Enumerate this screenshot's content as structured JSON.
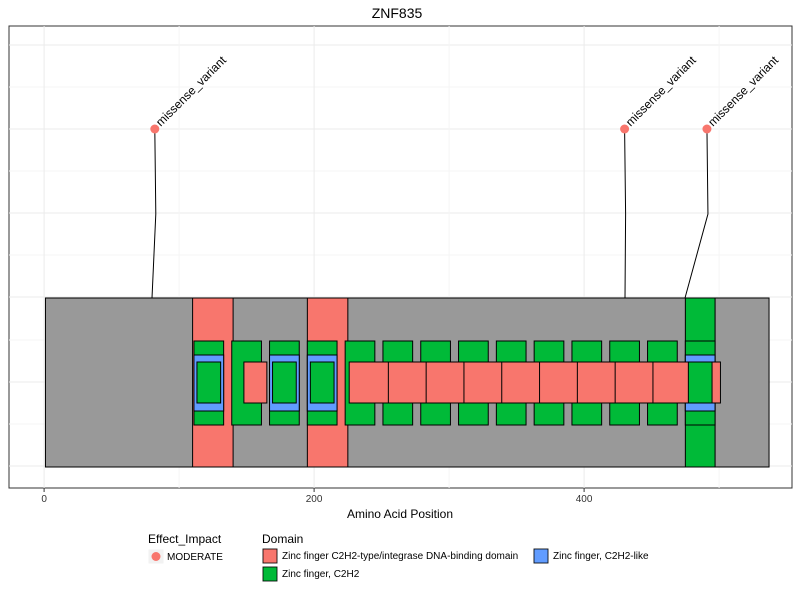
{
  "chart_data": {
    "type": "lollipop",
    "title": "ZNF835",
    "xlabel": "Amino Acid Position",
    "ylabel": "",
    "xlim": [
      -26,
      554
    ],
    "x_ticks": [
      0,
      200,
      400
    ],
    "grid": true,
    "protein": {
      "start": 1,
      "end": 537,
      "color": "#999999"
    },
    "domains": [
      {
        "group": "c2h2_integrase",
        "start": 110,
        "end": 140
      },
      {
        "group": "c2h2_integrase",
        "start": 195,
        "end": 225
      },
      {
        "group": "c2h2_integrase",
        "start": 487,
        "end": 497
      },
      {
        "group": "c2h2_integrase",
        "start": 148,
        "end": 165
      },
      {
        "group": "c2h2_integrase",
        "start": 226,
        "end": 277
      },
      {
        "group": "c2h2_integrase",
        "start": 255,
        "end": 305
      },
      {
        "group": "c2h2_integrase",
        "start": 283,
        "end": 333
      },
      {
        "group": "c2h2_integrase",
        "start": 311,
        "end": 361
      },
      {
        "group": "c2h2_integrase",
        "start": 339,
        "end": 389
      },
      {
        "group": "c2h2_integrase",
        "start": 367,
        "end": 417
      },
      {
        "group": "c2h2_integrase",
        "start": 395,
        "end": 445
      },
      {
        "group": "c2h2_integrase",
        "start": 423,
        "end": 473
      },
      {
        "group": "c2h2_integrase",
        "start": 451,
        "end": 501
      },
      {
        "group": "c2h2",
        "start": 475,
        "end": 497
      },
      {
        "group": "c2h2",
        "start": 111,
        "end": 133
      },
      {
        "group": "c2h2",
        "start": 139,
        "end": 161
      },
      {
        "group": "c2h2",
        "start": 167,
        "end": 189
      },
      {
        "group": "c2h2",
        "start": 195,
        "end": 217
      },
      {
        "group": "c2h2",
        "start": 223,
        "end": 245
      },
      {
        "group": "c2h2",
        "start": 251,
        "end": 273
      },
      {
        "group": "c2h2",
        "start": 279,
        "end": 301
      },
      {
        "group": "c2h2",
        "start": 307,
        "end": 329
      },
      {
        "group": "c2h2",
        "start": 335,
        "end": 357
      },
      {
        "group": "c2h2",
        "start": 363,
        "end": 385
      },
      {
        "group": "c2h2",
        "start": 391,
        "end": 413
      },
      {
        "group": "c2h2",
        "start": 419,
        "end": 441
      },
      {
        "group": "c2h2",
        "start": 447,
        "end": 469
      },
      {
        "group": "c2h2",
        "start": 475,
        "end": 497
      },
      {
        "group": "c2h2_like",
        "start": 111,
        "end": 133
      },
      {
        "group": "c2h2_like",
        "start": 167,
        "end": 189
      },
      {
        "group": "c2h2_like",
        "start": 195,
        "end": 217
      },
      {
        "group": "c2h2_like",
        "start": 475,
        "end": 497
      }
    ],
    "variants": [
      {
        "position": 82,
        "label": "missense_variant",
        "impact": "MODERATE"
      },
      {
        "position": 430,
        "label": "missense_variant",
        "impact": "MODERATE"
      },
      {
        "position": 491,
        "label": "missense_variant",
        "impact": "MODERATE"
      }
    ],
    "legend": {
      "placement": "bottom",
      "impact_title": "Effect_Impact",
      "impact_items": [
        {
          "key": "MODERATE",
          "label": "MODERATE",
          "color": "#F8766D"
        }
      ],
      "domain_title": "Domain",
      "domain_items": [
        {
          "key": "c2h2_integrase",
          "label": "Zinc finger C2H2-type/integrase DNA-binding domain",
          "color": "#F8766D"
        },
        {
          "key": "c2h2",
          "label": "Zinc finger, C2H2",
          "color": "#00BA38"
        },
        {
          "key": "c2h2_like",
          "label": "Zinc finger, C2H2-like",
          "color": "#619CFF"
        }
      ]
    }
  }
}
